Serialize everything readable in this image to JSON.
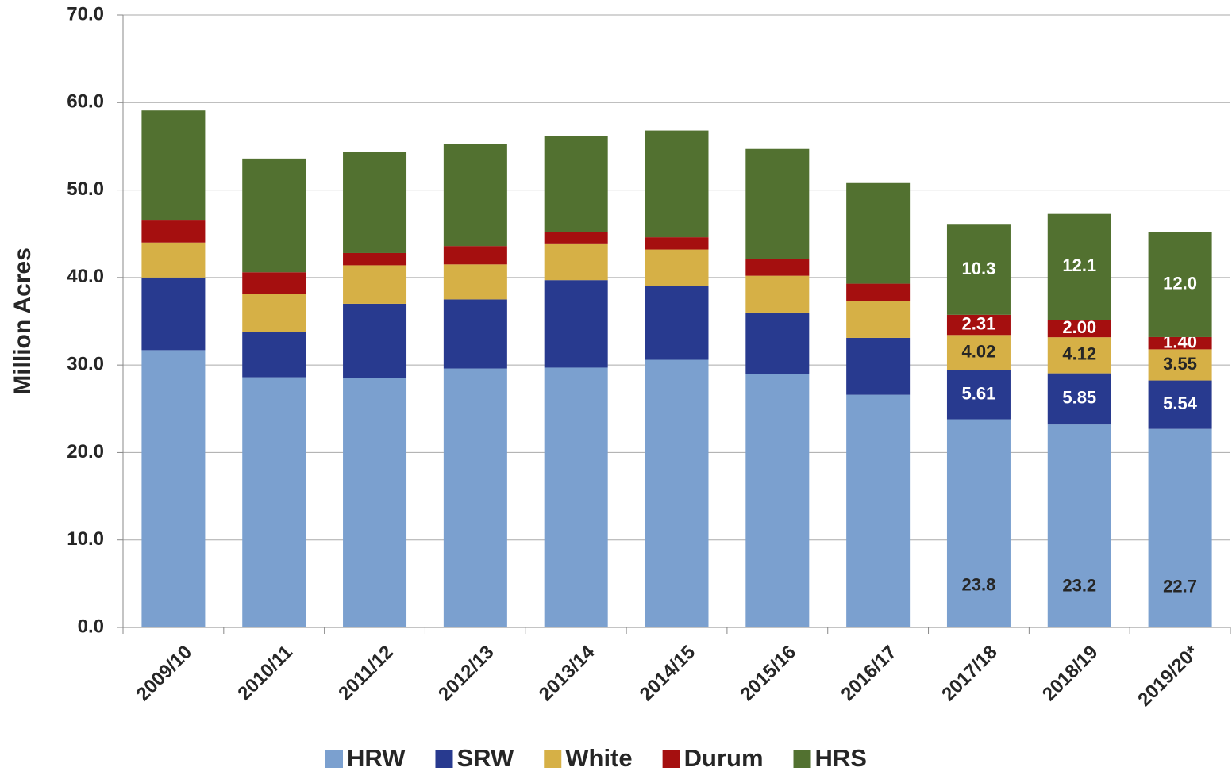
{
  "chart_data": {
    "type": "stacked_bar",
    "y_label": "Million Acres",
    "categories": [
      "2009/10",
      "2010/11",
      "2011/12",
      "2012/13",
      "2013/14",
      "2014/15",
      "2015/16",
      "2016/17",
      "2017/18",
      "2018/19",
      "2019/20*"
    ],
    "series": [
      {
        "name": "HRW",
        "color": "#7ba0cf",
        "label_color": "#262626",
        "values": [
          31.7,
          28.6,
          28.5,
          29.6,
          29.7,
          30.6,
          29.0,
          26.6,
          23.8,
          23.2,
          22.7
        ],
        "value_labels": [
          null,
          null,
          null,
          null,
          null,
          null,
          null,
          null,
          "23.8",
          "23.2",
          "22.7"
        ]
      },
      {
        "name": "SRW",
        "color": "#283a8f",
        "label_color": "#ffffff",
        "values": [
          8.3,
          5.2,
          8.5,
          7.9,
          10.0,
          8.4,
          7.0,
          6.5,
          5.61,
          5.85,
          5.54
        ],
        "value_labels": [
          null,
          null,
          null,
          null,
          null,
          null,
          null,
          null,
          "5.61",
          "5.85",
          "5.54"
        ]
      },
      {
        "name": "White",
        "color": "#d6b046",
        "label_color": "#262626",
        "values": [
          4.0,
          4.3,
          4.4,
          4.0,
          4.2,
          4.2,
          4.2,
          4.2,
          4.02,
          4.12,
          3.55
        ],
        "value_labels": [
          null,
          null,
          null,
          null,
          null,
          null,
          null,
          null,
          "4.02",
          "4.12",
          "3.55"
        ]
      },
      {
        "name": "Durum",
        "color": "#a50f0f",
        "label_color": "#ffffff",
        "values": [
          2.6,
          2.5,
          1.4,
          2.1,
          1.3,
          1.4,
          1.9,
          2.0,
          2.31,
          2.0,
          1.4
        ],
        "value_labels": [
          null,
          null,
          null,
          null,
          null,
          null,
          null,
          null,
          "2.31",
          "2.00",
          "1.40"
        ]
      },
      {
        "name": "HRS",
        "color": "#527130",
        "label_color": "#ffffff",
        "values": [
          12.5,
          13.0,
          11.6,
          11.7,
          11.0,
          12.2,
          12.6,
          11.5,
          10.3,
          12.1,
          12.0
        ],
        "value_labels": [
          null,
          null,
          null,
          null,
          null,
          null,
          null,
          null,
          "10.3",
          "12.1",
          "12.0"
        ]
      }
    ],
    "ylim": [
      0,
      70
    ],
    "yticks": [
      {
        "value": 0,
        "label": "0.0"
      },
      {
        "value": 10,
        "label": "10.0"
      },
      {
        "value": 20,
        "label": "20.0"
      },
      {
        "value": 30,
        "label": "30.0"
      },
      {
        "value": 40,
        "label": "40.0"
      },
      {
        "value": 50,
        "label": "50.0"
      },
      {
        "value": 60,
        "label": "60.0"
      },
      {
        "value": 70,
        "label": "70.0"
      }
    ],
    "grid": true,
    "legend": "bottom"
  }
}
